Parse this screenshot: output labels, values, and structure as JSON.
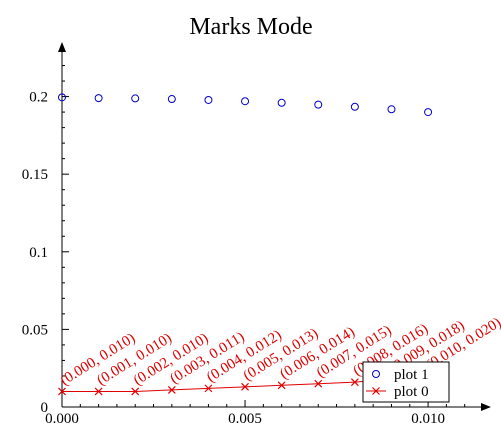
{
  "chart_data": {
    "type": "scatter",
    "title": "Marks Mode",
    "xlabel": "",
    "ylabel": "",
    "xlim": [
      0,
      0.0115
    ],
    "ylim": [
      0,
      0.23
    ],
    "x_ticks": [
      {
        "value": 0,
        "label": "0.000"
      },
      {
        "value": 0.005,
        "label": "0.005"
      },
      {
        "value": 0.01,
        "label": "0.010"
      }
    ],
    "y_ticks": [
      {
        "value": 0,
        "label": "0"
      },
      {
        "value": 0.05,
        "label": "0.05"
      },
      {
        "value": 0.1,
        "label": "0.1"
      },
      {
        "value": 0.15,
        "label": "0.15"
      },
      {
        "value": 0.2,
        "label": "0.2"
      }
    ],
    "grid": false,
    "legend_position": "bottom-right",
    "series": [
      {
        "name": "plot 1",
        "color": "#0000cc",
        "marker": "circle",
        "x": [
          0,
          0.001,
          0.002,
          0.003,
          0.004,
          0.005,
          0.006,
          0.007,
          0.008,
          0.009,
          0.01
        ],
        "y": [
          0.1995,
          0.199,
          0.1988,
          0.1984,
          0.1978,
          0.197,
          0.196,
          0.1948,
          0.1934,
          0.1918,
          0.19
        ]
      },
      {
        "name": "plot 0",
        "color": "#e00000",
        "marker": "x",
        "line": true,
        "x": [
          0,
          0.001,
          0.002,
          0.003,
          0.004,
          0.005,
          0.006,
          0.007,
          0.008,
          0.009,
          0.01
        ],
        "y": [
          0.01,
          0.01,
          0.01,
          0.011,
          0.012,
          0.013,
          0.014,
          0.015,
          0.016,
          0.018,
          0.02
        ],
        "point_labels": [
          "(0.000, 0.010)",
          "(0.001, 0.010)",
          "(0.002, 0.010)",
          "(0.003, 0.011)",
          "(0.004, 0.012)",
          "(0.005, 0.013)",
          "(0.006, 0.014)",
          "(0.007, 0.015)",
          "(0.008, 0.016)",
          "(0.009, 0.018)",
          "(0.010, 0.020)"
        ]
      }
    ],
    "legend": [
      {
        "name": "plot 1",
        "marker": "circle",
        "color": "#0000cc"
      },
      {
        "name": "plot 0",
        "marker": "x",
        "color": "#e00000"
      }
    ]
  }
}
